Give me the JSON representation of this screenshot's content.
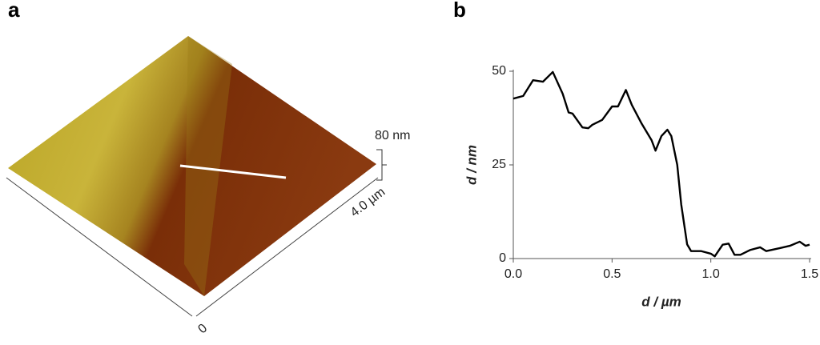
{
  "panel_a": {
    "label": "a",
    "z_scale": "80 nm",
    "xy_scale": "4.0 µm",
    "origin": "0"
  },
  "chart_data": {
    "type": "line",
    "label": "b",
    "xlabel": "d / µm",
    "ylabel": "d / nm",
    "x": [
      0,
      0.05,
      0.1,
      0.15,
      0.2,
      0.25,
      0.28,
      0.3,
      0.35,
      0.38,
      0.4,
      0.45,
      0.5,
      0.53,
      0.57,
      0.6,
      0.65,
      0.7,
      0.72,
      0.75,
      0.78,
      0.8,
      0.83,
      0.85,
      0.88,
      0.9,
      0.95,
      1.0,
      1.02,
      1.06,
      1.09,
      1.12,
      1.15,
      1.2,
      1.25,
      1.28,
      1.35,
      1.4,
      1.45,
      1.48,
      1.5
    ],
    "y": [
      42.7,
      43.4,
      47.6,
      47.2,
      49.8,
      44,
      39,
      38.7,
      35,
      34.8,
      35.7,
      37,
      40.6,
      40.6,
      45,
      41,
      36,
      31.6,
      28.8,
      32.7,
      34.4,
      32.7,
      25,
      14.5,
      3.8,
      2,
      2,
      1.3,
      0.6,
      3.7,
      4,
      1,
      1,
      2.3,
      3,
      2,
      2.8,
      3.4,
      4.5,
      3.4,
      3.7
    ],
    "color": "#000000",
    "xlim": [
      0,
      1.5
    ],
    "ylim": [
      0,
      50
    ],
    "xticks": [
      {
        "value": 0,
        "label": "0.0"
      },
      {
        "value": 0.5,
        "label": "0.5"
      },
      {
        "value": 1,
        "label": "1.0"
      },
      {
        "value": 1.5,
        "label": "1.5"
      }
    ],
    "yticks": [
      0,
      25,
      50
    ],
    "grid": false
  }
}
